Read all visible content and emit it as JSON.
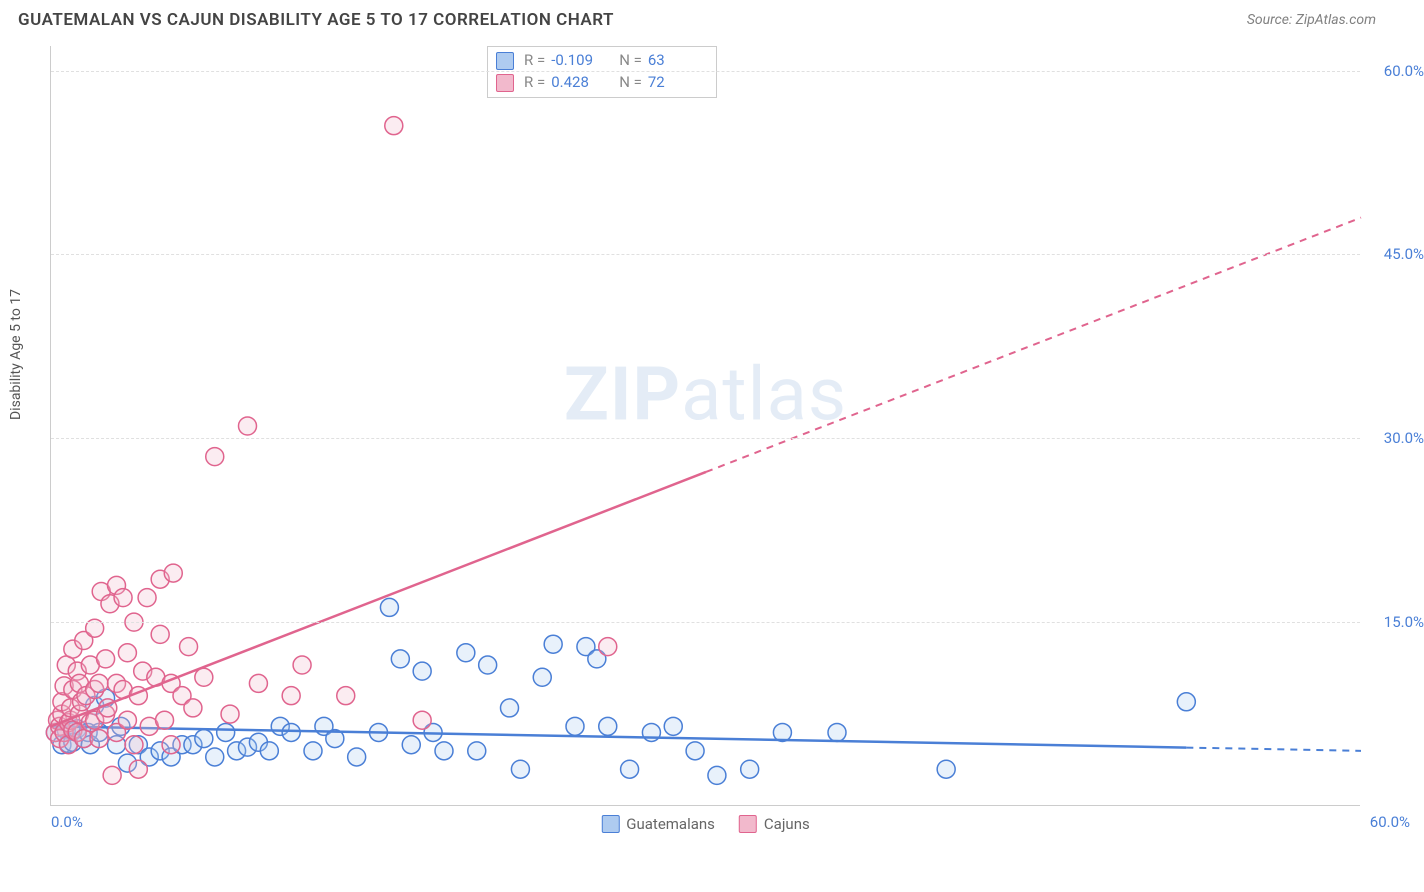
{
  "title": "GUATEMALAN VS CAJUN DISABILITY AGE 5 TO 17 CORRELATION CHART",
  "source": "Source: ZipAtlas.com",
  "watermark_zip": "ZIP",
  "watermark_atlas": "atlas",
  "chart": {
    "type": "scatter",
    "y_axis_label": "Disability Age 5 to 17",
    "xlim": [
      0,
      60
    ],
    "ylim": [
      0,
      62
    ],
    "x_ticks": [
      {
        "v": 0,
        "label": "0.0%"
      },
      {
        "v": 60,
        "label": "60.0%"
      }
    ],
    "y_ticks": [
      {
        "v": 15,
        "label": "15.0%"
      },
      {
        "v": 30,
        "label": "30.0%"
      },
      {
        "v": 45,
        "label": "45.0%"
      },
      {
        "v": 60,
        "label": "60.0%"
      }
    ],
    "grid_color": "#e0e0e0",
    "axis_color": "#cccccc",
    "background_color": "#ffffff",
    "marker_radius": 9,
    "marker_stroke_width": 1.5,
    "fill_opacity": 0.28,
    "series": [
      {
        "name": "Guatemalans",
        "color_stroke": "#4a7fd6",
        "color_fill": "#aecbf0",
        "R": "-0.109",
        "N": "63",
        "trend": {
          "x1": 0,
          "y1": 6.5,
          "x2": 60,
          "y2": 4.5,
          "solid_until_x": 52
        },
        "points": [
          [
            0.2,
            6.0
          ],
          [
            0.5,
            5.0
          ],
          [
            0.7,
            6.2
          ],
          [
            0.8,
            5.1
          ],
          [
            1.0,
            6.1
          ],
          [
            1.0,
            5.2
          ],
          [
            1.2,
            6.3
          ],
          [
            1.5,
            5.5
          ],
          [
            1.7,
            6.0
          ],
          [
            1.8,
            5.0
          ],
          [
            2.0,
            8.2
          ],
          [
            2.2,
            6.0
          ],
          [
            2.5,
            8.8
          ],
          [
            3.0,
            5.0
          ],
          [
            3.2,
            6.5
          ],
          [
            3.5,
            3.5
          ],
          [
            4.0,
            5.0
          ],
          [
            4.5,
            4.0
          ],
          [
            5.0,
            4.5
          ],
          [
            5.5,
            4.0
          ],
          [
            6.0,
            5.0
          ],
          [
            6.5,
            5.0
          ],
          [
            7.0,
            5.5
          ],
          [
            7.5,
            4.0
          ],
          [
            8.0,
            6.0
          ],
          [
            8.5,
            4.5
          ],
          [
            9.0,
            4.8
          ],
          [
            9.5,
            5.2
          ],
          [
            10.0,
            4.5
          ],
          [
            10.5,
            6.5
          ],
          [
            11.0,
            6.0
          ],
          [
            12.0,
            4.5
          ],
          [
            12.5,
            6.5
          ],
          [
            13.0,
            5.5
          ],
          [
            14.0,
            4.0
          ],
          [
            15.0,
            6.0
          ],
          [
            15.5,
            16.2
          ],
          [
            16.0,
            12.0
          ],
          [
            16.5,
            5.0
          ],
          [
            17.0,
            11.0
          ],
          [
            17.5,
            6.0
          ],
          [
            18.0,
            4.5
          ],
          [
            19.0,
            12.5
          ],
          [
            19.5,
            4.5
          ],
          [
            20.0,
            11.5
          ],
          [
            21.0,
            8.0
          ],
          [
            21.5,
            3.0
          ],
          [
            22.5,
            10.5
          ],
          [
            23.0,
            13.2
          ],
          [
            24.0,
            6.5
          ],
          [
            24.5,
            13.0
          ],
          [
            25.0,
            12.0
          ],
          [
            25.5,
            6.5
          ],
          [
            26.5,
            3.0
          ],
          [
            27.5,
            6.0
          ],
          [
            28.5,
            6.5
          ],
          [
            29.5,
            4.5
          ],
          [
            30.5,
            2.5
          ],
          [
            32.0,
            3.0
          ],
          [
            33.5,
            6.0
          ],
          [
            36.0,
            6.0
          ],
          [
            41.0,
            3.0
          ],
          [
            52.0,
            8.5
          ]
        ]
      },
      {
        "name": "Cajuns",
        "color_stroke": "#e0648e",
        "color_fill": "#f2b9cc",
        "R": "0.428",
        "N": "72",
        "trend": {
          "x1": 0,
          "y1": 6.5,
          "x2": 60,
          "y2": 48.0,
          "solid_until_x": 30
        },
        "points": [
          [
            0.2,
            6.0
          ],
          [
            0.3,
            7.0
          ],
          [
            0.4,
            6.5
          ],
          [
            0.4,
            5.5
          ],
          [
            0.5,
            7.5
          ],
          [
            0.5,
            8.5
          ],
          [
            0.6,
            6.0
          ],
          [
            0.6,
            9.8
          ],
          [
            0.7,
            11.5
          ],
          [
            0.8,
            6.8
          ],
          [
            0.8,
            5.0
          ],
          [
            0.9,
            7.0
          ],
          [
            0.9,
            8.0
          ],
          [
            1.0,
            9.5
          ],
          [
            1.0,
            6.2
          ],
          [
            1.0,
            12.8
          ],
          [
            1.2,
            6.0
          ],
          [
            1.2,
            11.0
          ],
          [
            1.3,
            7.5
          ],
          [
            1.3,
            10.0
          ],
          [
            1.4,
            8.5
          ],
          [
            1.5,
            13.5
          ],
          [
            1.5,
            5.5
          ],
          [
            1.6,
            9.0
          ],
          [
            1.8,
            11.5
          ],
          [
            1.8,
            6.8
          ],
          [
            2.0,
            7.0
          ],
          [
            2.0,
            9.5
          ],
          [
            2.0,
            14.5
          ],
          [
            2.2,
            10.0
          ],
          [
            2.2,
            5.5
          ],
          [
            2.3,
            17.5
          ],
          [
            2.5,
            7.5
          ],
          [
            2.5,
            12.0
          ],
          [
            2.6,
            8.0
          ],
          [
            2.7,
            16.5
          ],
          [
            2.8,
            2.5
          ],
          [
            3.0,
            10.0
          ],
          [
            3.0,
            18.0
          ],
          [
            3.0,
            6.0
          ],
          [
            3.3,
            17.0
          ],
          [
            3.3,
            9.5
          ],
          [
            3.5,
            12.5
          ],
          [
            3.5,
            7.0
          ],
          [
            3.8,
            5.0
          ],
          [
            3.8,
            15.0
          ],
          [
            4.0,
            9.0
          ],
          [
            4.0,
            3.0
          ],
          [
            4.2,
            11.0
          ],
          [
            4.4,
            17.0
          ],
          [
            4.5,
            6.5
          ],
          [
            4.8,
            10.5
          ],
          [
            5.0,
            14.0
          ],
          [
            5.0,
            18.5
          ],
          [
            5.2,
            7.0
          ],
          [
            5.5,
            10.0
          ],
          [
            5.5,
            5.0
          ],
          [
            5.6,
            19.0
          ],
          [
            6.0,
            9.0
          ],
          [
            6.3,
            13.0
          ],
          [
            6.5,
            8.0
          ],
          [
            7.0,
            10.5
          ],
          [
            7.5,
            28.5
          ],
          [
            8.2,
            7.5
          ],
          [
            9.0,
            31.0
          ],
          [
            9.5,
            10.0
          ],
          [
            11.0,
            9.0
          ],
          [
            11.5,
            11.5
          ],
          [
            13.5,
            9.0
          ],
          [
            15.7,
            55.5
          ],
          [
            17.0,
            7.0
          ],
          [
            25.5,
            13.0
          ]
        ]
      }
    ],
    "bottom_legend": [
      {
        "label": "Guatemalans",
        "swatch_fill": "#aecbf0",
        "swatch_stroke": "#4a7fd6"
      },
      {
        "label": "Cajuns",
        "swatch_fill": "#f2b9cc",
        "swatch_stroke": "#e0648e"
      }
    ]
  }
}
